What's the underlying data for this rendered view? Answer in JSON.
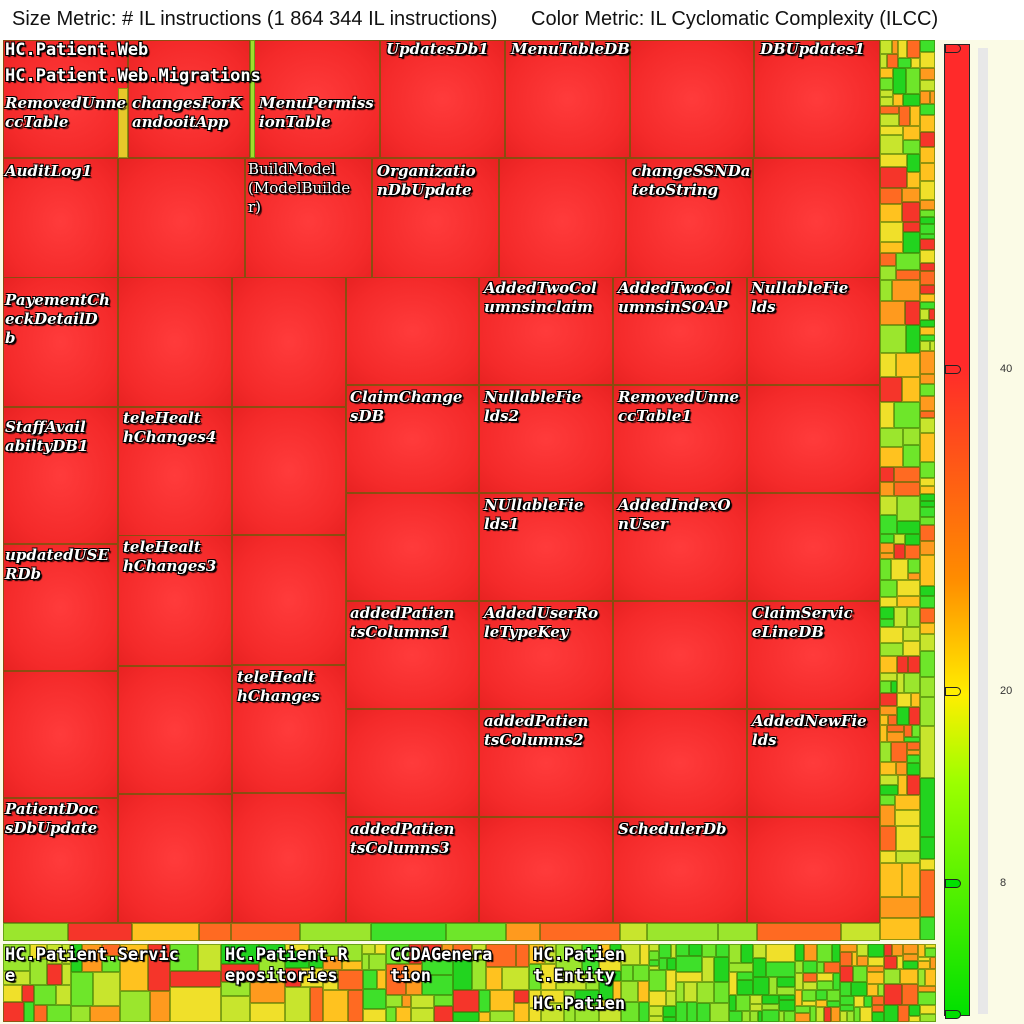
{
  "header": {
    "size_metric": "Size Metric: # IL instructions (1 864 344 IL instructions)",
    "color_metric": "Color Metric: IL Cyclomatic Complexity (ILCC)"
  },
  "legend": {
    "tick_labels": [
      "40",
      "20",
      "8"
    ],
    "colors": {
      "high": "#ff2a2a",
      "mid": "#ffee00",
      "low": "#00e000"
    }
  },
  "chart_data": {
    "type": "heatmap",
    "title": "",
    "size_metric": "# IL instructions",
    "size_total": "1 864 344",
    "color_metric": "IL Cyclomatic Complexity (ILCC)",
    "color_scale_ticks": [
      8,
      20,
      40
    ],
    "groups": [
      {
        "name": "HC.Patient.Web",
        "color": "high"
      },
      {
        "name": "HC.Patient.Web.Migrations",
        "color": "high"
      },
      {
        "name": "HC.Patient.Servic e",
        "color": "mixed"
      },
      {
        "name": "HC.Patient.R epositories",
        "color": "mixed"
      },
      {
        "name": "CCDAGenera tion",
        "color": "mixed"
      },
      {
        "name": "HC.Patien t.Entity",
        "color": "mixed"
      },
      {
        "name": "HC.Patien",
        "color": "mixed"
      }
    ],
    "cells": [
      {
        "name": "RemovedUnne ccTable",
        "color": "high"
      },
      {
        "name": "changesForK andooitApp",
        "color": "high"
      },
      {
        "name": "MenuPermiss ionTable",
        "color": "high"
      },
      {
        "name": "UpdatesDb1",
        "color": "high"
      },
      {
        "name": "MenuTableDB",
        "color": "high"
      },
      {
        "name": "DBUpdates1",
        "color": "high"
      },
      {
        "name": "AuditLog1",
        "color": "high"
      },
      {
        "name": "BuildModel (ModelBuilde r)",
        "color": "high"
      },
      {
        "name": "Organizatio nDbUpdate",
        "color": "high"
      },
      {
        "name": "changeSSNDa tetoString",
        "color": "high"
      },
      {
        "name": "PayementCh eckDetailD b",
        "color": "high"
      },
      {
        "name": "AddedTwoCol umnsinclaim",
        "color": "high"
      },
      {
        "name": "AddedTwoCol umnsinSOAP",
        "color": "high"
      },
      {
        "name": "NullableFie lds",
        "color": "high"
      },
      {
        "name": "ClaimChange sDB",
        "color": "high"
      },
      {
        "name": "NullableFie lds2",
        "color": "high"
      },
      {
        "name": "RemovedUnne ccTable1",
        "color": "high"
      },
      {
        "name": "StaffAvail abiltyDB1",
        "color": "high"
      },
      {
        "name": "teleHealt hChanges4",
        "color": "high"
      },
      {
        "name": "NUllableFie lds1",
        "color": "high"
      },
      {
        "name": "AddedIndexO nUser",
        "color": "high"
      },
      {
        "name": "updatedUSE RDb",
        "color": "high"
      },
      {
        "name": "teleHealt hChanges3",
        "color": "high"
      },
      {
        "name": "addedPatien tsColumns1",
        "color": "high"
      },
      {
        "name": "AddedUserRo leTypeKey",
        "color": "high"
      },
      {
        "name": "ClaimServic eLineDB",
        "color": "high"
      },
      {
        "name": "teleHealt hChanges",
        "color": "high"
      },
      {
        "name": "addedPatien tsColumns2",
        "color": "high"
      },
      {
        "name": "AddedNewFie lds",
        "color": "high"
      },
      {
        "name": "PatientDoc sDbUpdate",
        "color": "high"
      },
      {
        "name": "addedPatien tsColumns3",
        "color": "high"
      },
      {
        "name": "SchedulerDb",
        "color": "high"
      }
    ]
  }
}
